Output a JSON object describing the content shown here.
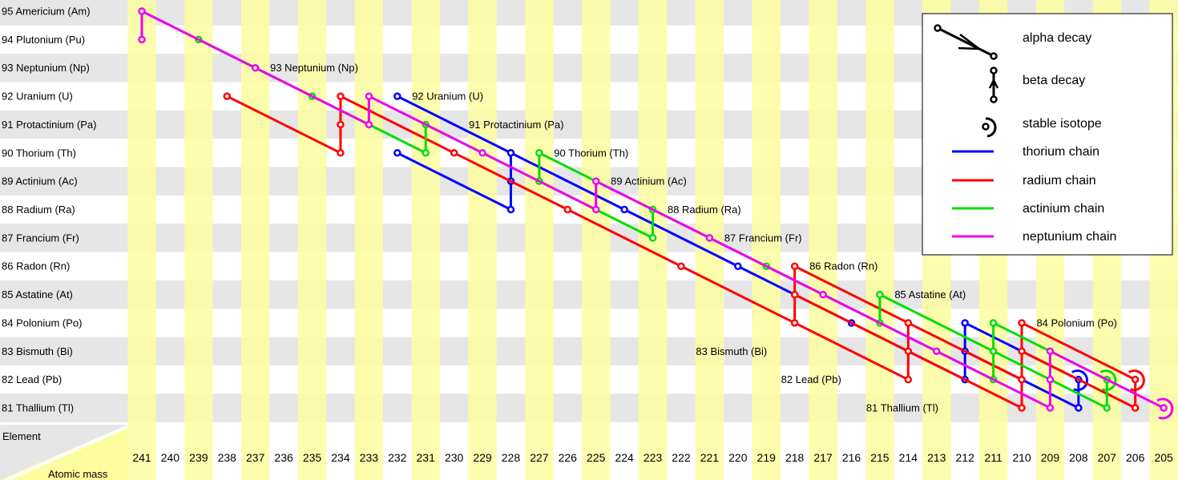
{
  "elements": [
    {
      "z": 95,
      "label": "95 Americium (Am)"
    },
    {
      "z": 94,
      "label": "94 Plutonium (Pu)"
    },
    {
      "z": 93,
      "label": "93 Neptunium (Np)"
    },
    {
      "z": 92,
      "label": "92 Uranium (U)"
    },
    {
      "z": 91,
      "label": "91 Protactinium (Pa)"
    },
    {
      "z": 90,
      "label": "90 Thorium (Th)"
    },
    {
      "z": 89,
      "label": "89 Actinium (Ac)"
    },
    {
      "z": 88,
      "label": "88 Radium (Ra)"
    },
    {
      "z": 87,
      "label": "87 Francium (Fr)"
    },
    {
      "z": 86,
      "label": "86 Radon (Rn)"
    },
    {
      "z": 85,
      "label": "85 Astatine (At)"
    },
    {
      "z": 84,
      "label": "84 Polonium (Po)"
    },
    {
      "z": 83,
      "label": "83 Bismuth (Bi)"
    },
    {
      "z": 82,
      "label": "82 Lead (Pb)"
    },
    {
      "z": 81,
      "label": "81 Thallium (Tl)"
    }
  ],
  "masses": [
    241,
    240,
    239,
    238,
    237,
    236,
    235,
    234,
    233,
    232,
    231,
    230,
    229,
    228,
    227,
    226,
    225,
    224,
    223,
    222,
    221,
    220,
    219,
    218,
    217,
    216,
    215,
    214,
    213,
    212,
    211,
    210,
    209,
    208,
    207,
    206,
    205
  ],
  "header": {
    "element": "Element",
    "atomic_mass": "Atomic mass"
  },
  "inline_labels": [
    {
      "z": 93,
      "mass": 236,
      "text": "93 Neptunium (Np)"
    },
    {
      "z": 92,
      "mass": 231,
      "text": "92 Uranium (U)"
    },
    {
      "z": 91,
      "mass": 229,
      "text": "91 Protactinium (Pa)"
    },
    {
      "z": 90,
      "mass": 226,
      "text": "90 Thorium (Th)"
    },
    {
      "z": 89,
      "mass": 224,
      "text": "89 Actinium (Ac)"
    },
    {
      "z": 88,
      "mass": 222,
      "text": "88 Radium (Ra)"
    },
    {
      "z": 87,
      "mass": 220,
      "text": "87 Francium (Fr)"
    },
    {
      "z": 86,
      "mass": 217,
      "text": "86 Radon (Rn)"
    },
    {
      "z": 85,
      "mass": 214,
      "text": "85 Astatine (At)"
    },
    {
      "z": 84,
      "mass": 209,
      "text": "84 Polonium (Po)"
    },
    {
      "z": 83,
      "mass": 221,
      "text": "83 Bismuth (Bi)"
    },
    {
      "z": 82,
      "mass": 218,
      "text": "82 Lead (Pb)"
    },
    {
      "z": 81,
      "mass": 215,
      "text": "81 Thallium (Tl)"
    }
  ],
  "legend": {
    "alpha": "alpha decay",
    "beta": "beta decay",
    "stable": "stable isotope",
    "thorium": "thorium chain",
    "radium": "radium chain",
    "actinium": "actinium chain",
    "neptunium": "neptunium chain"
  },
  "colors": {
    "row_gray": "#e6e6e6",
    "col_yellow": "#fdfda0",
    "thorium": "#0000ff",
    "radium": "#ff0000",
    "actinium": "#00dd00",
    "neptunium": "#ee00ee"
  },
  "chains": [
    {
      "key": "thorium",
      "edges": [
        [
          232,
          92,
          228,
          90
        ],
        [
          232,
          90,
          228,
          88
        ],
        [
          228,
          88,
          228,
          89
        ],
        [
          228,
          89,
          228,
          90
        ],
        [
          228,
          90,
          224,
          88
        ],
        [
          224,
          88,
          220,
          86
        ],
        [
          220,
          86,
          216,
          84
        ],
        [
          216,
          84,
          212,
          82
        ],
        [
          212,
          82,
          212,
          83
        ],
        [
          212,
          83,
          212,
          84
        ],
        [
          212,
          84,
          208,
          82
        ],
        [
          212,
          83,
          208,
          81
        ],
        [
          208,
          81,
          208,
          82
        ]
      ],
      "stable": [
        [
          208,
          82
        ]
      ]
    },
    {
      "key": "radium",
      "edges": [
        [
          238,
          92,
          234,
          90
        ],
        [
          234,
          90,
          234,
          91
        ],
        [
          234,
          91,
          234,
          92
        ],
        [
          234,
          92,
          230,
          90
        ],
        [
          230,
          90,
          226,
          88
        ],
        [
          226,
          88,
          222,
          86
        ],
        [
          222,
          86,
          218,
          84
        ],
        [
          218,
          84,
          218,
          85
        ],
        [
          218,
          85,
          218,
          86
        ],
        [
          218,
          86,
          214,
          84
        ],
        [
          218,
          85,
          214,
          83
        ],
        [
          218,
          84,
          214,
          82
        ],
        [
          214,
          82,
          214,
          83
        ],
        [
          214,
          83,
          214,
          84
        ],
        [
          214,
          84,
          210,
          82
        ],
        [
          214,
          83,
          210,
          81
        ],
        [
          210,
          81,
          210,
          82
        ],
        [
          210,
          82,
          210,
          83
        ],
        [
          210,
          83,
          210,
          84
        ],
        [
          210,
          84,
          206,
          82
        ],
        [
          210,
          83,
          206,
          81
        ],
        [
          206,
          81,
          206,
          82
        ]
      ],
      "stable": [
        [
          206,
          82
        ]
      ]
    },
    {
      "key": "actinium",
      "edges": [
        [
          239,
          94,
          235,
          92
        ],
        [
          235,
          92,
          231,
          90
        ],
        [
          231,
          90,
          231,
          91
        ],
        [
          231,
          91,
          227,
          89
        ],
        [
          227,
          89,
          227,
          90
        ],
        [
          227,
          90,
          223,
          88
        ],
        [
          227,
          89,
          223,
          87
        ],
        [
          223,
          87,
          223,
          88
        ],
        [
          223,
          88,
          219,
          86
        ],
        [
          219,
          86,
          215,
          84
        ],
        [
          215,
          84,
          215,
          85
        ],
        [
          215,
          85,
          211,
          83
        ],
        [
          215,
          84,
          211,
          82
        ],
        [
          211,
          82,
          211,
          83
        ],
        [
          211,
          83,
          211,
          84
        ],
        [
          211,
          84,
          207,
          82
        ],
        [
          211,
          83,
          207,
          81
        ],
        [
          207,
          81,
          207,
          82
        ]
      ],
      "stable": [
        [
          207,
          82
        ]
      ]
    },
    {
      "key": "neptunium",
      "edges": [
        [
          241,
          94,
          241,
          95
        ],
        [
          241,
          95,
          237,
          93
        ],
        [
          237,
          93,
          233,
          91
        ],
        [
          233,
          91,
          233,
          92
        ],
        [
          233,
          92,
          229,
          90
        ],
        [
          229,
          90,
          225,
          88
        ],
        [
          225,
          88,
          225,
          89
        ],
        [
          225,
          89,
          221,
          87
        ],
        [
          221,
          87,
          217,
          85
        ],
        [
          217,
          85,
          213,
          83
        ],
        [
          213,
          83,
          209,
          81
        ],
        [
          209,
          81,
          209,
          82
        ],
        [
          209,
          82,
          209,
          83
        ],
        [
          209,
          83,
          205,
          81
        ]
      ],
      "stable": [
        [
          205,
          81
        ]
      ]
    }
  ]
}
